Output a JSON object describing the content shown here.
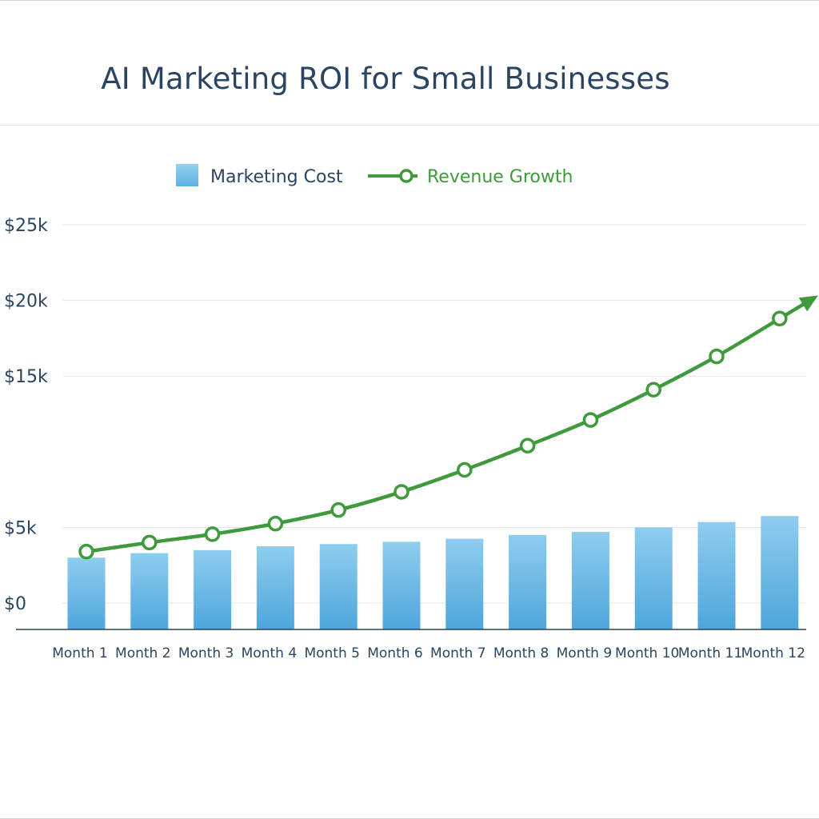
{
  "chart_data": {
    "type": "bar",
    "title": "AI Marketing ROI for Small Businesses",
    "xlabel": "",
    "ylabel": "",
    "categories": [
      "Month 1",
      "Month 2",
      "Month 3",
      "Month 4",
      "Month 5",
      "Month 6",
      "Month 7",
      "Month 8",
      "Month 9",
      "Month 10",
      "Month 11",
      "Month 12"
    ],
    "y_ticks": [
      {
        "value": 0,
        "label": "$0"
      },
      {
        "value": 5000,
        "label": "$5k"
      },
      {
        "value": 15000,
        "label": "$15k"
      },
      {
        "value": 20000,
        "label": "$20k"
      },
      {
        "value": 25000,
        "label": "$25k"
      }
    ],
    "ylim": [
      0,
      25000
    ],
    "grid": true,
    "legend_position": "top-center",
    "series": [
      {
        "name": "Marketing Cost",
        "type": "bar",
        "color": "#5aafe0",
        "values": [
          3000,
          3300,
          3500,
          3750,
          3900,
          4050,
          4250,
          4500,
          4700,
          5000,
          5350,
          5750
        ]
      },
      {
        "name": "Revenue Growth",
        "type": "line",
        "color": "#3f9a3c",
        "values": [
          3400,
          4000,
          4550,
          5250,
          6150,
          7350,
          8800,
          10400,
          12100,
          14100,
          16300,
          18800
        ]
      }
    ]
  }
}
